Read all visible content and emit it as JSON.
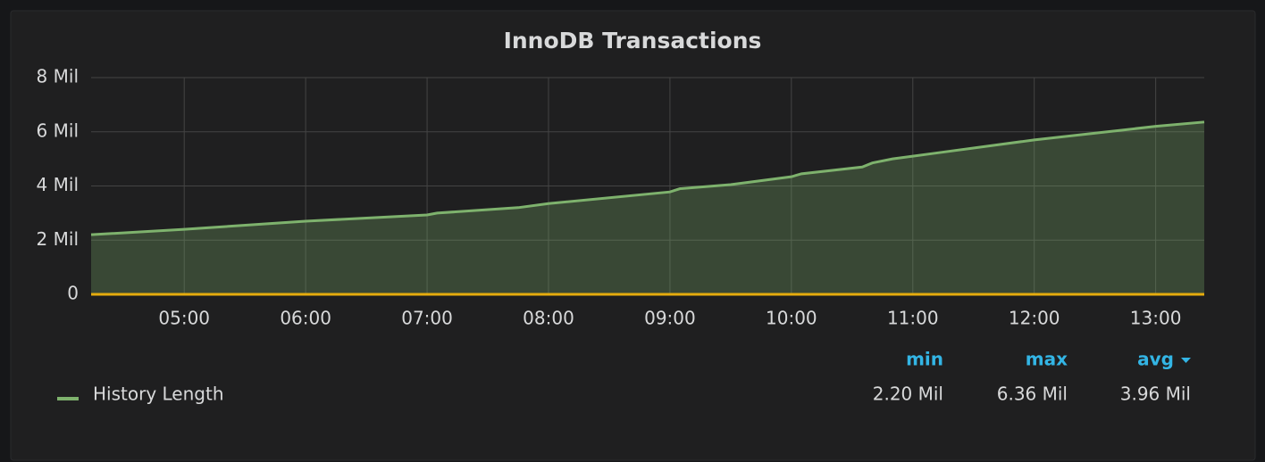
{
  "chart_data": {
    "type": "area",
    "title": "InnoDB Transactions",
    "x": [
      "04:14",
      "05:00",
      "06:00",
      "07:00",
      "07:05",
      "07:45",
      "08:00",
      "09:00",
      "09:05",
      "09:30",
      "10:00",
      "10:05",
      "10:35",
      "10:40",
      "10:50",
      "11:00",
      "11:10",
      "12:00",
      "13:00",
      "13:24"
    ],
    "series": [
      {
        "name": "History Length",
        "color": "#7eb26d",
        "values": [
          2200000,
          2400000,
          2700000,
          2930000,
          3000000,
          3200000,
          3350000,
          3780000,
          3900000,
          4050000,
          4340000,
          4450000,
          4700000,
          4850000,
          5000000,
          5100000,
          5200000,
          5700000,
          6200000,
          6360000
        ],
        "stats": [
          2200000,
          6360000,
          3960000
        ],
        "stats_labels": [
          "2.20 Mil",
          "6.36 Mil",
          "3.96 Mil"
        ]
      }
    ],
    "legend_columns": [
      "min",
      "max",
      "avg"
    ],
    "xlim": [
      "04:14",
      "13:24"
    ],
    "xticks": [
      "05:00",
      "06:00",
      "07:00",
      "08:00",
      "09:00",
      "10:00",
      "11:00",
      "12:00",
      "13:00"
    ],
    "ylim": [
      0,
      8000000
    ],
    "yticks": [
      0,
      {
        "value": 2000000,
        "label": "2 Mil"
      },
      {
        "value": 4000000,
        "label": "4 Mil"
      },
      {
        "value": 6000000,
        "label": "6 Mil"
      },
      {
        "value": 8000000,
        "label": "8 Mil"
      }
    ],
    "grid": true,
    "threshold_line": {
      "value": 0,
      "color": "#e5ac0e"
    }
  }
}
